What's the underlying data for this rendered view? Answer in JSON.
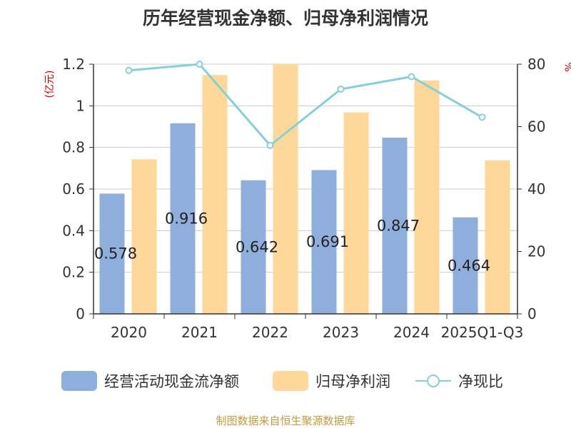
{
  "chart_data": {
    "type": "bar",
    "title": "历年经营现金净额、归母净利润情况",
    "categories": [
      "2020",
      "2021",
      "2022",
      "2023",
      "2024",
      "2025Q1-Q3"
    ],
    "left_axis_unit": "(亿元)",
    "right_axis_unit": "%",
    "y_left": {
      "min": 0,
      "max": 1.2,
      "ticks": [
        "0",
        "0.2",
        "0.4",
        "0.6",
        "0.8",
        "1",
        "1.2"
      ]
    },
    "y_right": {
      "min": 0,
      "max": 80,
      "ticks": [
        "0",
        "20",
        "40",
        "60",
        "80"
      ]
    },
    "grid": true,
    "legend_position": "bottom",
    "series": [
      {
        "name": "经营活动现金流净额",
        "type": "bar",
        "axis": "left",
        "color": "#8eaedb",
        "values": [
          0.578,
          0.916,
          0.642,
          0.691,
          0.847,
          0.464
        ],
        "labels": [
          "0.578",
          "0.916",
          "0.642",
          "0.691",
          "0.847",
          "0.464"
        ]
      },
      {
        "name": "归母净利润",
        "type": "bar",
        "axis": "left",
        "color": "#fdd898",
        "values": [
          0.743,
          1.148,
          1.2,
          0.968,
          1.122,
          0.738
        ]
      },
      {
        "name": "净现比",
        "type": "line",
        "axis": "right",
        "color": "#85d0d8",
        "values": [
          78,
          80,
          54,
          72,
          76,
          63
        ]
      }
    ]
  },
  "source": "制图数据来自恒生聚源数据库"
}
